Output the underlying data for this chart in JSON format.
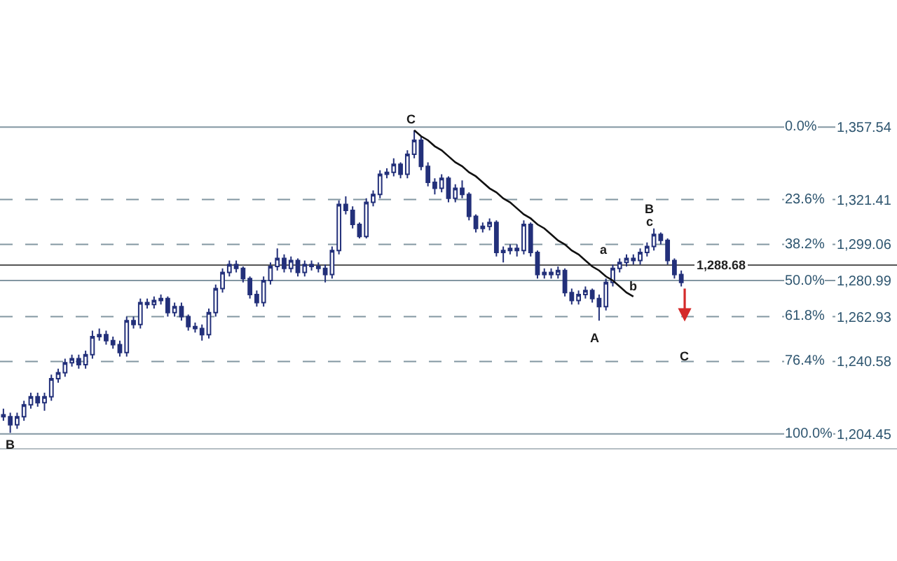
{
  "chart_data": {
    "type": "candlestick",
    "color": "#23307a",
    "categories": [
      null,
      null,
      null,
      null,
      null,
      null,
      null,
      null,
      null,
      null,
      null,
      null,
      null,
      null,
      null,
      null,
      null,
      null,
      null,
      null,
      null,
      null,
      null,
      null,
      null,
      null,
      null,
      null,
      null,
      null,
      null,
      null,
      null,
      null,
      null,
      null,
      null,
      null,
      null,
      null,
      null,
      null,
      null,
      null,
      null,
      null,
      null,
      null,
      null,
      null,
      null,
      null,
      null,
      null,
      null,
      null,
      null,
      null,
      null,
      null,
      null,
      null,
      null,
      null,
      null,
      null,
      null,
      null,
      null,
      null,
      null,
      null,
      null,
      null,
      null,
      null,
      null,
      null,
      null,
      null,
      null,
      null,
      null,
      null,
      null,
      null,
      null,
      null,
      null,
      null,
      null,
      null,
      null,
      null,
      null,
      null,
      null,
      null,
      null,
      null,
      null,
      null,
      null,
      null,
      null,
      null,
      null,
      null,
      null,
      null,
      null,
      null,
      null,
      null,
      null,
      null,
      null,
      null,
      null,
      null,
      null,
      null
    ],
    "ohlc": [
      [
        1214,
        1217,
        1211,
        1213
      ],
      [
        1213,
        1215,
        1205,
        1209
      ],
      [
        1209,
        1215,
        1207,
        1213
      ],
      [
        1213,
        1221,
        1211,
        1219
      ],
      [
        1219,
        1225,
        1217,
        1223
      ],
      [
        1223,
        1225,
        1218,
        1220
      ],
      [
        1220,
        1225,
        1216,
        1223
      ],
      [
        1223,
        1234,
        1221,
        1232
      ],
      [
        1232,
        1237,
        1230,
        1235
      ],
      [
        1235,
        1242,
        1233,
        1240
      ],
      [
        1240,
        1244,
        1238,
        1242
      ],
      [
        1242,
        1244,
        1237,
        1239
      ],
      [
        1239,
        1246,
        1237,
        1244
      ],
      [
        1244,
        1256,
        1242,
        1253
      ],
      [
        1253,
        1257,
        1251,
        1254
      ],
      [
        1254,
        1256,
        1249,
        1251
      ],
      [
        1251,
        1253,
        1247,
        1249
      ],
      [
        1249,
        1251,
        1243,
        1245
      ],
      [
        1245,
        1263,
        1243,
        1261
      ],
      [
        1261,
        1263,
        1257,
        1259
      ],
      [
        1259,
        1272,
        1257,
        1270
      ],
      [
        1270,
        1272,
        1267,
        1269
      ],
      [
        1269,
        1273,
        1267,
        1271
      ],
      [
        1271,
        1274,
        1269,
        1272
      ],
      [
        1272,
        1273,
        1263,
        1265
      ],
      [
        1265,
        1270,
        1263,
        1268
      ],
      [
        1268,
        1270,
        1261,
        1263
      ],
      [
        1263,
        1264,
        1256,
        1258
      ],
      [
        1258,
        1260,
        1255,
        1257
      ],
      [
        1257,
        1259,
        1251,
        1254
      ],
      [
        1254,
        1267,
        1252,
        1265
      ],
      [
        1265,
        1279,
        1263,
        1277
      ],
      [
        1277,
        1287,
        1275,
        1285
      ],
      [
        1285,
        1291,
        1283,
        1289
      ],
      [
        1289,
        1291,
        1285,
        1287
      ],
      [
        1287,
        1288,
        1280,
        1282
      ],
      [
        1282,
        1283,
        1272,
        1274
      ],
      [
        1274,
        1276,
        1268,
        1270
      ],
      [
        1270,
        1283,
        1268,
        1281
      ],
      [
        1281,
        1290,
        1279,
        1288
      ],
      [
        1288,
        1297,
        1286,
        1292
      ],
      [
        1292,
        1294,
        1285,
        1287
      ],
      [
        1287,
        1293,
        1285,
        1291
      ],
      [
        1291,
        1292,
        1283,
        1285
      ],
      [
        1285,
        1291,
        1283,
        1289
      ],
      [
        1289,
        1291,
        1286,
        1288
      ],
      [
        1288,
        1290,
        1285,
        1287
      ],
      [
        1287,
        1289,
        1280,
        1284
      ],
      [
        1284,
        1298,
        1282,
        1296
      ],
      [
        1296,
        1321,
        1294,
        1319
      ],
      [
        1319,
        1323,
        1314,
        1316
      ],
      [
        1316,
        1318,
        1307,
        1309
      ],
      [
        1309,
        1310,
        1302,
        1303
      ],
      [
        1303,
        1322,
        1302,
        1320
      ],
      [
        1320,
        1326,
        1318,
        1324
      ],
      [
        1324,
        1336,
        1322,
        1334
      ],
      [
        1334,
        1337,
        1332,
        1335
      ],
      [
        1335,
        1342,
        1333,
        1339
      ],
      [
        1339,
        1340,
        1332,
        1334
      ],
      [
        1334,
        1346,
        1332,
        1344
      ],
      [
        1344,
        1356,
        1342,
        1351
      ],
      [
        1351,
        1353,
        1336,
        1338
      ],
      [
        1338,
        1340,
        1328,
        1330
      ],
      [
        1330,
        1332,
        1324,
        1327
      ],
      [
        1327,
        1334,
        1325,
        1332
      ],
      [
        1332,
        1333,
        1320,
        1322
      ],
      [
        1322,
        1329,
        1320,
        1327
      ],
      [
        1327,
        1331,
        1322,
        1324
      ],
      [
        1324,
        1325,
        1311,
        1313
      ],
      [
        1313,
        1314,
        1305,
        1307
      ],
      [
        1307,
        1310,
        1305,
        1308
      ],
      [
        1308,
        1312,
        1306,
        1310
      ],
      [
        1310,
        1311,
        1293,
        1295
      ],
      [
        1295,
        1298,
        1290,
        1296
      ],
      [
        1296,
        1299,
        1294,
        1297
      ],
      [
        1297,
        1299,
        1293,
        1296
      ],
      [
        1296,
        1311,
        1294,
        1309
      ],
      [
        1309,
        1310,
        1293,
        1295
      ],
      [
        1295,
        1296,
        1282,
        1284
      ],
      [
        1284,
        1287,
        1282,
        1285
      ],
      [
        1285,
        1287,
        1282,
        1284
      ],
      [
        1284,
        1288,
        1282,
        1286
      ],
      [
        1286,
        1287,
        1273,
        1275
      ],
      [
        1275,
        1277,
        1269,
        1271
      ],
      [
        1271,
        1276,
        1269,
        1274
      ],
      [
        1274,
        1278,
        1272,
        1276
      ],
      [
        1276,
        1277,
        1270,
        1272
      ],
      [
        1272,
        1274,
        1261,
        1268
      ],
      [
        1268,
        1282,
        1266,
        1280
      ],
      [
        1280,
        1289,
        1278,
        1287
      ],
      [
        1287,
        1292,
        1285,
        1290
      ],
      [
        1290,
        1294,
        1288,
        1292
      ],
      [
        1292,
        1294,
        1289,
        1291
      ],
      [
        1291,
        1297,
        1289,
        1295
      ],
      [
        1295,
        1300,
        1293,
        1298
      ],
      [
        1298,
        1307,
        1296,
        1304
      ],
      [
        1304,
        1305,
        1299,
        1301
      ],
      [
        1301,
        1302,
        1289,
        1291
      ],
      [
        1291,
        1292,
        1282,
        1284
      ],
      [
        1284,
        1286,
        1278,
        1280
      ],
      null,
      null,
      null,
      null,
      null,
      null,
      null,
      null,
      null,
      null,
      null,
      null,
      null,
      null,
      null,
      null,
      null,
      null,
      null,
      null,
      null,
      null
    ],
    "series": [
      {
        "type": "line",
        "color": "#111111",
        "values": [
          null,
          null,
          null,
          null,
          null,
          null,
          null,
          null,
          null,
          null,
          null,
          null,
          null,
          null,
          null,
          null,
          null,
          null,
          null,
          null,
          null,
          null,
          null,
          null,
          null,
          null,
          null,
          null,
          null,
          null,
          null,
          null,
          null,
          null,
          null,
          null,
          null,
          null,
          null,
          null,
          null,
          null,
          null,
          null,
          null,
          null,
          null,
          null,
          null,
          null,
          null,
          null,
          null,
          null,
          null,
          null,
          null,
          null,
          null,
          null,
          1356,
          1353,
          1351,
          1348,
          1346,
          1343,
          1340,
          1338,
          1335,
          1333,
          1330,
          1327,
          1325,
          1322,
          1320,
          1317,
          1314,
          1312,
          1309,
          1307,
          1304,
          1301,
          1299,
          1296,
          1294,
          1291,
          1288,
          1286,
          1283,
          1281,
          1278,
          1275,
          1273,
          null,
          null,
          null,
          null,
          null,
          null,
          null,
          null,
          null,
          null,
          null,
          null,
          null,
          null,
          null,
          null,
          null,
          null,
          null,
          null,
          null,
          null,
          null,
          null,
          null,
          null,
          null,
          null,
          null
        ]
      }
    ],
    "ylim": [
      1197,
      1421
    ],
    "yticks": [
      {
        "value": 1357.54,
        "label": "1,357.54"
      },
      {
        "value": 1321.41,
        "label": "1,321.41"
      },
      {
        "value": 1299.06,
        "label": "1,299.06"
      },
      {
        "value": 1280.99,
        "label": "1,280.99"
      },
      {
        "value": 1262.93,
        "label": "1,262.93"
      },
      {
        "value": 1240.58,
        "label": "1,240.58"
      },
      {
        "value": 1204.45,
        "label": "1,204.45"
      }
    ],
    "tick_labels": "y",
    "ref_lines": [
      {
        "axis": "y",
        "value": 1357.54,
        "color": "#8397a2",
        "line_style": "solid"
      },
      {
        "axis": "y",
        "value": 1321.41,
        "color": "#8397a2",
        "line_style": "dashed"
      },
      {
        "axis": "y",
        "value": 1299.06,
        "color": "#8397a2",
        "line_style": "dashed"
      },
      {
        "axis": "y",
        "value": 1280.99,
        "color": "#8397a2",
        "line_style": "solid"
      },
      {
        "axis": "y",
        "value": 1262.93,
        "color": "#8397a2",
        "line_style": "dashed"
      },
      {
        "axis": "y",
        "value": 1240.58,
        "color": "#8397a2",
        "line_style": "dashed"
      },
      {
        "axis": "y",
        "value": 1204.45,
        "color": "#8397a2",
        "line_style": "solid"
      },
      {
        "axis": "y",
        "value": 1288.68,
        "label": "1,288.68",
        "color": "#555555",
        "line_style": "solid"
      }
    ],
    "annotations": [
      {
        "text": "0.0%",
        "y": 1357.54
      },
      {
        "text": "23.6%",
        "y": 1321.41
      },
      {
        "text": "38.2%",
        "y": 1299.06
      },
      {
        "text": "50.0%",
        "y": 1280.99
      },
      {
        "text": "61.8%",
        "y": 1262.93
      },
      {
        "text": "76.4%",
        "y": 1240.58
      },
      {
        "text": "100.0%",
        "y": 1204.45
      },
      "B",
      "C",
      "A",
      "a",
      "b",
      "B",
      "c",
      "C"
    ]
  }
}
